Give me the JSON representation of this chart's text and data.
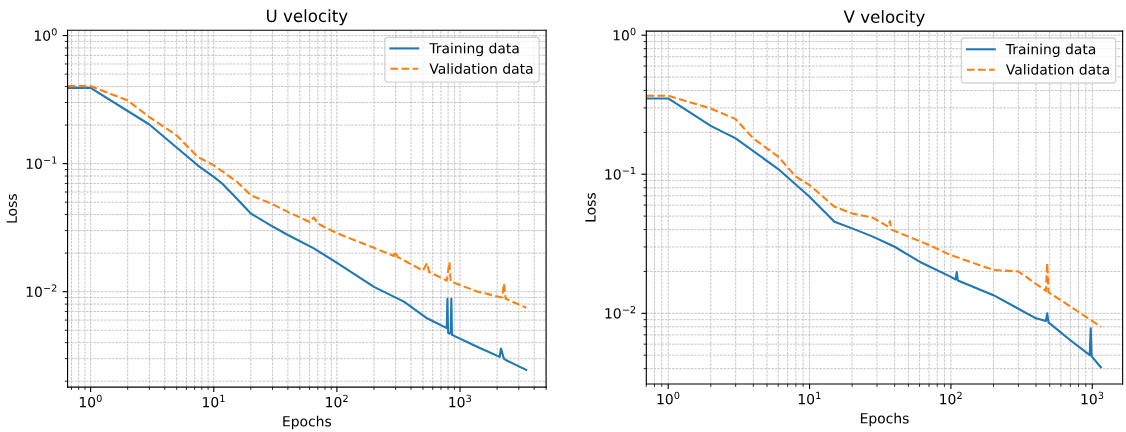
{
  "chart_data": [
    {
      "type": "line",
      "title": "U velocity",
      "xlabel": "Epochs",
      "ylabel": "Loss",
      "log": "xy",
      "grid": true,
      "legend": "top right",
      "xlim": [
        0.65,
        5000
      ],
      "ylim": [
        0.0018,
        1.1
      ],
      "xticks": [
        {
          "value": 1,
          "label": "10$^{0}$"
        },
        {
          "value": 10,
          "label": "10$^{1}$"
        },
        {
          "value": 100,
          "label": "10$^{2}$"
        },
        {
          "value": 1000,
          "label": "10$^{3}$"
        }
      ],
      "yticks": [
        {
          "value": 0.01,
          "label": "10$^{−2}$"
        },
        {
          "value": 0.1,
          "label": "10$^{−1}$"
        },
        {
          "value": 1,
          "label": "10$^{0}$"
        }
      ],
      "series": [
        {
          "name": "Training data",
          "color": "#1f77b4",
          "line_style": "solid",
          "x": [
            0.65,
            1,
            3,
            7.4,
            10,
            11.7,
            15.5,
            20,
            29,
            40,
            65,
            101,
            200,
            350,
            540,
            780,
            790,
            800,
            820,
            840,
            850,
            860,
            1390,
            2100,
            2150,
            2270,
            2400,
            3450
          ],
          "values": [
            0.39,
            0.39,
            0.202,
            0.097,
            0.0787,
            0.07,
            0.053,
            0.0408,
            0.033,
            0.0277,
            0.0218,
            0.0167,
            0.0109,
            0.00836,
            0.0062,
            0.0052,
            0.0088,
            0.0048,
            0.0047,
            0.0048,
            0.0088,
            0.0046,
            0.0037,
            0.0031,
            0.0036,
            0.003,
            0.0029,
            0.00245
          ]
        },
        {
          "name": "Validation data",
          "color": "#ff7f0e",
          "line_style": "dashed",
          "x": [
            0.65,
            1,
            1.99,
            3,
            5,
            7.4,
            10,
            15.5,
            20,
            29,
            40,
            60,
            65,
            70,
            101,
            200,
            290,
            300,
            310,
            500,
            540,
            560,
            780,
            820,
            840,
            1390,
            2200,
            2270,
            2350,
            3450
          ],
          "values": [
            0.403,
            0.403,
            0.312,
            0.231,
            0.166,
            0.113,
            0.097,
            0.072,
            0.0566,
            0.049,
            0.042,
            0.035,
            0.038,
            0.034,
            0.0285,
            0.022,
            0.019,
            0.0205,
            0.0187,
            0.0146,
            0.0167,
            0.0143,
            0.0122,
            0.017,
            0.012,
            0.01,
            0.009,
            0.0116,
            0.0088,
            0.0075
          ]
        }
      ]
    },
    {
      "type": "line",
      "title": "V velocity",
      "xlabel": "Epochs",
      "ylabel": "Loss",
      "log": "xy",
      "grid": true,
      "legend": "top right",
      "xlim": [
        0.7,
        1640
      ],
      "ylim": [
        0.0031,
        1.07
      ],
      "xticks": [
        {
          "value": 1,
          "label": "10$^{0}$"
        },
        {
          "value": 10,
          "label": "10$^{1}$"
        },
        {
          "value": 100,
          "label": "10$^{2}$"
        },
        {
          "value": 1000,
          "label": "10$^{3}$"
        }
      ],
      "yticks": [
        {
          "value": 0.01,
          "label": "10$^{−2}$"
        },
        {
          "value": 0.1,
          "label": "10$^{−1}$"
        },
        {
          "value": 1,
          "label": "10$^{0}$"
        }
      ],
      "series": [
        {
          "name": "Training data",
          "color": "#1f77b4",
          "line_style": "solid",
          "x": [
            0.7,
            1,
            2,
            3,
            6,
            10,
            15,
            20,
            28,
            40,
            60,
            100,
            108,
            110,
            112,
            200,
            400,
            470,
            480,
            490,
            700,
            960,
            975,
            990,
            1150
          ],
          "values": [
            0.351,
            0.351,
            0.223,
            0.181,
            0.109,
            0.069,
            0.0456,
            0.0408,
            0.0356,
            0.0301,
            0.0235,
            0.0183,
            0.0175,
            0.0198,
            0.0172,
            0.0135,
            0.0092,
            0.0088,
            0.01,
            0.0086,
            0.0064,
            0.005,
            0.0078,
            0.0049,
            0.0041
          ]
        },
        {
          "name": "Validation data",
          "color": "#ff7f0e",
          "line_style": "dashed",
          "x": [
            0.7,
            1,
            2,
            3,
            4,
            6,
            8,
            10,
            15,
            20,
            28,
            36,
            37,
            38,
            50,
            70,
            100,
            200,
            300,
            470,
            480,
            490,
            700,
            1150
          ],
          "values": [
            0.367,
            0.367,
            0.297,
            0.249,
            0.181,
            0.134,
            0.096,
            0.0836,
            0.0584,
            0.0523,
            0.0487,
            0.042,
            0.046,
            0.04,
            0.0356,
            0.031,
            0.0262,
            0.0205,
            0.02,
            0.0145,
            0.0229,
            0.0142,
            0.0112,
            0.008
          ]
        }
      ]
    }
  ]
}
